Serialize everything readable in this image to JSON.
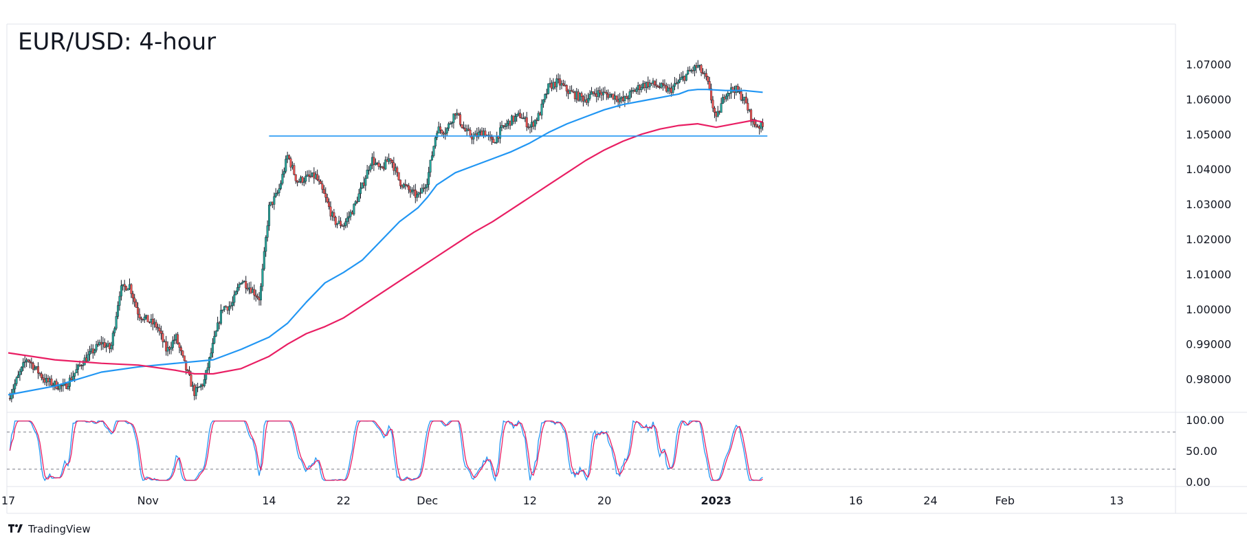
{
  "title": "EUR/USD: 4-hour",
  "brand": {
    "name": "TradingView",
    "icon": "tradingview-logo-icon"
  },
  "colors": {
    "up": "#26a69a",
    "down": "#ef5350",
    "candle_body_up": "#ffffff",
    "candle_wick": "#131722",
    "ma_fast": "#2196f3",
    "ma_slow": "#e91e63",
    "support": "#2196f3",
    "stoch_k": "#2196f3",
    "stoch_d": "#e91e63",
    "grid_border": "#e0e3eb"
  },
  "chart_data": [
    {
      "type": "candlestick",
      "title": "EUR/USD: 4-hour",
      "y_ticks": [
        "1.07000",
        "1.06000",
        "1.05000",
        "1.04000",
        "1.03000",
        "1.02000",
        "1.01000",
        "1.00000",
        "0.99000",
        "0.98000"
      ],
      "y_tick_values": [
        1.07,
        1.06,
        1.05,
        1.04,
        1.03,
        1.02,
        1.01,
        1.0,
        0.99,
        0.98
      ],
      "ylim": [
        0.9705,
        1.0815
      ],
      "x_ticks": [
        {
          "label": "17",
          "day": 0,
          "bold": false
        },
        {
          "label": "Nov",
          "day": 15,
          "bold": false
        },
        {
          "label": "14",
          "day": 28,
          "bold": false
        },
        {
          "label": "22",
          "day": 36,
          "bold": false
        },
        {
          "label": "Dec",
          "day": 45,
          "bold": false
        },
        {
          "label": "12",
          "day": 56,
          "bold": false
        },
        {
          "label": "20",
          "day": 64,
          "bold": false
        },
        {
          "label": "2023",
          "day": 76,
          "bold": true
        },
        {
          "label": "16",
          "day": 91,
          "bold": false
        },
        {
          "label": "24",
          "day": 99,
          "bold": false
        },
        {
          "label": "Feb",
          "day": 107,
          "bold": false
        },
        {
          "label": "13",
          "day": 119,
          "bold": false
        }
      ],
      "xlim_days": [
        0,
        125
      ],
      "price_path": [
        [
          0,
          0.9745
        ],
        [
          2,
          0.986
        ],
        [
          4,
          0.9795
        ],
        [
          6,
          0.9775
        ],
        [
          8,
          0.985
        ],
        [
          10,
          0.9905
        ],
        [
          11,
          0.9885
        ],
        [
          12,
          1.0055
        ],
        [
          13,
          1.007
        ],
        [
          14,
          0.9985
        ],
        [
          16,
          0.995
        ],
        [
          17,
          0.988
        ],
        [
          18,
          0.992
        ],
        [
          19,
          0.9835
        ],
        [
          20,
          0.976
        ],
        [
          21,
          0.979
        ],
        [
          22,
          0.99
        ],
        [
          23,
          1.0005
        ],
        [
          24,
          1.001
        ],
        [
          25,
          1.0085
        ],
        [
          26,
          1.006
        ],
        [
          27,
          1.003
        ],
        [
          28,
          1.029
        ],
        [
          29,
          1.0335
        ],
        [
          30,
          1.044
        ],
        [
          31,
          1.0365
        ],
        [
          32,
          1.0375
        ],
        [
          33,
          1.038
        ],
        [
          34,
          1.032
        ],
        [
          35,
          1.025
        ],
        [
          36,
          1.024
        ],
        [
          37,
          1.0285
        ],
        [
          38,
          1.035
        ],
        [
          39,
          1.043
        ],
        [
          40,
          1.0395
        ],
        [
          41,
          1.0435
        ],
        [
          42,
          1.0365
        ],
        [
          43,
          1.034
        ],
        [
          44,
          1.032
        ],
        [
          45,
          1.037
        ],
        [
          46,
          1.0515
        ],
        [
          47,
          1.051
        ],
        [
          48,
          1.0565
        ],
        [
          49,
          1.051
        ],
        [
          50,
          1.049
        ],
        [
          51,
          1.051
        ],
        [
          52,
          1.0475
        ],
        [
          53,
          1.0515
        ],
        [
          54,
          1.054
        ],
        [
          55,
          1.0555
        ],
        [
          56,
          1.052
        ],
        [
          57,
          1.0555
        ],
        [
          58,
          1.0635
        ],
        [
          59,
          1.065
        ],
        [
          60,
          1.0625
        ],
        [
          61,
          1.061
        ],
        [
          62,
          1.06
        ],
        [
          63,
          1.062
        ],
        [
          64,
          1.0615
        ],
        [
          65,
          1.061
        ],
        [
          66,
          1.0595
        ],
        [
          67,
          1.062
        ],
        [
          68,
          1.064
        ],
        [
          69,
          1.0645
        ],
        [
          70,
          1.0635
        ],
        [
          71,
          1.0625
        ],
        [
          72,
          1.065
        ],
        [
          73,
          1.0675
        ],
        [
          74,
          1.0695
        ],
        [
          75,
          1.0655
        ],
        [
          76,
          1.054
        ],
        [
          77,
          1.062
        ],
        [
          78,
          1.063
        ],
        [
          79,
          1.06
        ],
        [
          80,
          1.053
        ],
        [
          81,
          1.052
        ]
      ],
      "series": [
        {
          "kind": "moving_average",
          "color": "#2196f3",
          "points": [
            [
              0,
              0.9755
            ],
            [
              5,
              0.978
            ],
            [
              10,
              0.982
            ],
            [
              14,
              0.9835
            ],
            [
              18,
              0.9845
            ],
            [
              22,
              0.9855
            ],
            [
              25,
              0.9885
            ],
            [
              28,
              0.992
            ],
            [
              30,
              0.996
            ],
            [
              32,
              1.002
            ],
            [
              34,
              1.0075
            ],
            [
              36,
              1.0105
            ],
            [
              38,
              1.014
            ],
            [
              40,
              1.0195
            ],
            [
              42,
              1.025
            ],
            [
              44,
              1.029
            ],
            [
              45,
              1.032
            ],
            [
              46,
              1.0355
            ],
            [
              48,
              1.039
            ],
            [
              50,
              1.041
            ],
            [
              52,
              1.043
            ],
            [
              54,
              1.045
            ],
            [
              56,
              1.0475
            ],
            [
              58,
              1.0505
            ],
            [
              60,
              1.053
            ],
            [
              62,
              1.055
            ],
            [
              64,
              1.057
            ],
            [
              66,
              1.0585
            ],
            [
              68,
              1.0595
            ],
            [
              70,
              1.0605
            ],
            [
              72,
              1.0615
            ],
            [
              73,
              1.0625
            ],
            [
              74,
              1.0628
            ],
            [
              75,
              1.0628
            ],
            [
              77,
              1.0625
            ],
            [
              79,
              1.0625
            ],
            [
              81,
              1.062
            ]
          ]
        },
        {
          "kind": "moving_average",
          "color": "#e91e63",
          "points": [
            [
              0,
              0.9875
            ],
            [
              5,
              0.9855
            ],
            [
              10,
              0.9845
            ],
            [
              14,
              0.984
            ],
            [
              18,
              0.9825
            ],
            [
              20,
              0.9815
            ],
            [
              22,
              0.9815
            ],
            [
              25,
              0.983
            ],
            [
              28,
              0.9865
            ],
            [
              30,
              0.99
            ],
            [
              32,
              0.993
            ],
            [
              34,
              0.995
            ],
            [
              36,
              0.9975
            ],
            [
              38,
              1.001
            ],
            [
              40,
              1.0045
            ],
            [
              42,
              1.008
            ],
            [
              44,
              1.0115
            ],
            [
              46,
              1.015
            ],
            [
              48,
              1.0185
            ],
            [
              50,
              1.022
            ],
            [
              52,
              1.025
            ],
            [
              54,
              1.0285
            ],
            [
              56,
              1.032
            ],
            [
              58,
              1.0355
            ],
            [
              60,
              1.039
            ],
            [
              62,
              1.0425
            ],
            [
              64,
              1.0455
            ],
            [
              66,
              1.048
            ],
            [
              68,
              1.05
            ],
            [
              70,
              1.0515
            ],
            [
              72,
              1.0525
            ],
            [
              74,
              1.053
            ],
            [
              76,
              1.052
            ],
            [
              78,
              1.053
            ],
            [
              80,
              1.054
            ],
            [
              81,
              1.0535
            ]
          ]
        },
        {
          "kind": "support_line",
          "color": "#2196f3",
          "points": [
            [
              28,
              1.0495
            ],
            [
              81.5,
              1.0495
            ]
          ]
        }
      ]
    },
    {
      "type": "line",
      "y_ticks": [
        "100.00",
        "50.00",
        "0.00"
      ],
      "y_tick_values": [
        100,
        50,
        0
      ],
      "ylim": [
        -8,
        112
      ],
      "levels": [
        80,
        20
      ],
      "series": [
        {
          "kind": "stoch_k",
          "color": "#2196f3"
        },
        {
          "kind": "stoch_d",
          "color": "#e91e63"
        }
      ]
    }
  ]
}
